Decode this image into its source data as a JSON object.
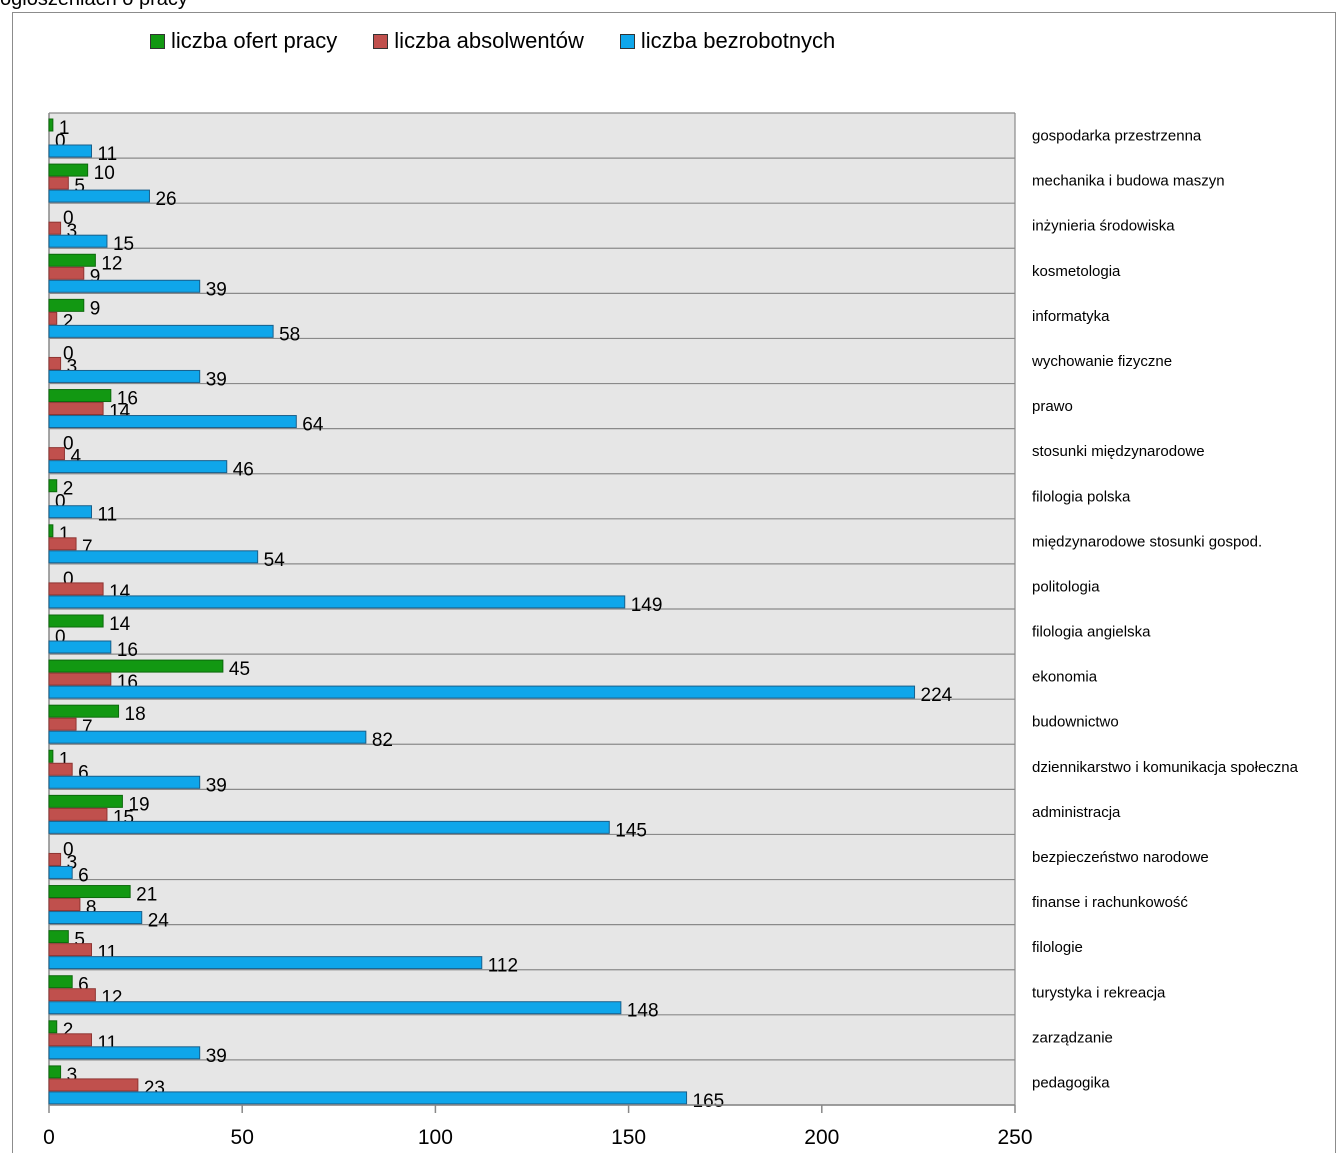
{
  "caption": "ogłoszeniach o pracy",
  "chart_data": {
    "type": "bar",
    "orientation": "horizontal",
    "categories": [
      "gospodarka przestrzenna",
      "mechanika i budowa maszyn",
      "inżynieria środowiska",
      "kosmetologia",
      "informatyka",
      "wychowanie fizyczne",
      "prawo",
      "stosunki międzynarodowe",
      "filologia polska",
      "międzynarodowe stosunki gospod.",
      "politologia",
      "filologia angielska",
      "ekonomia",
      "budownictwo",
      "dziennikarstwo i komunikacja społeczna",
      "administracja",
      "bezpieczeństwo narodowe",
      "finanse i rachunkowość",
      "filologie",
      "turystyka i rekreacja",
      "zarządzanie",
      "pedagogika"
    ],
    "series": [
      {
        "name": "liczba ofert pracy",
        "color": "#129812",
        "values": [
          1,
          10,
          0,
          12,
          9,
          0,
          16,
          0,
          2,
          1,
          0,
          14,
          45,
          18,
          1,
          19,
          0,
          21,
          5,
          6,
          2,
          3
        ]
      },
      {
        "name": "liczba absolwentów",
        "color": "#c0504d",
        "values": [
          0,
          5,
          3,
          9,
          2,
          3,
          14,
          4,
          0,
          7,
          14,
          0,
          16,
          7,
          6,
          15,
          3,
          8,
          11,
          12,
          11,
          23
        ]
      },
      {
        "name": "liczba bezrobotnych",
        "color": "#0fa6ea",
        "values": [
          11,
          26,
          15,
          39,
          58,
          39,
          64,
          46,
          11,
          54,
          149,
          16,
          224,
          82,
          39,
          145,
          6,
          24,
          112,
          148,
          39,
          165
        ]
      }
    ],
    "xlim": [
      0,
      250
    ],
    "xticks": [
      "0",
      "50",
      "100",
      "150",
      "200",
      "250"
    ],
    "legend_position": "top",
    "grid": true
  }
}
